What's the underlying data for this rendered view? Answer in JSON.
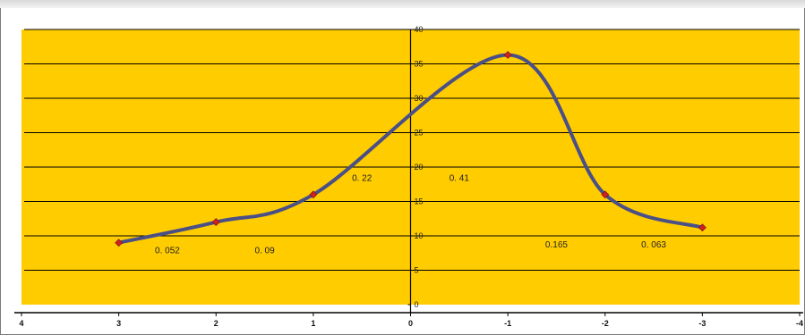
{
  "chart_data": {
    "type": "line",
    "title": "",
    "xlabel": "",
    "ylabel": "",
    "x_ticks": [
      "4",
      "3",
      "2",
      "1",
      "0",
      "-1",
      "-2",
      "-3",
      "-4"
    ],
    "x_range": [
      4,
      -4
    ],
    "y_ticks": [
      "0",
      "5",
      "10",
      "15",
      "20",
      "25",
      "30",
      "35",
      "40"
    ],
    "ylim": [
      0,
      40
    ],
    "grid": true,
    "series": [
      {
        "x": [
          3,
          2,
          1,
          -1,
          -2,
          -3
        ],
        "y": [
          9,
          12,
          16,
          36.3,
          16,
          11.2
        ],
        "color": "#4a4f86",
        "marker_color": "#cc2222",
        "smooth": true
      }
    ],
    "annotations": [
      {
        "text": "0. 052",
        "x": 2.5,
        "y": 7.5
      },
      {
        "text": "0. 09",
        "x": 1.5,
        "y": 7.5
      },
      {
        "text": "0. 22",
        "x": 0.5,
        "y": 18
      },
      {
        "text": "0. 41",
        "x": -0.5,
        "y": 18
      },
      {
        "text": "0.165",
        "x": -1.5,
        "y": 8.3
      },
      {
        "text": "0. 063",
        "x": -2.5,
        "y": 8.3
      }
    ],
    "plot_background": "#ffcc00",
    "gridline_color": "#000000"
  }
}
